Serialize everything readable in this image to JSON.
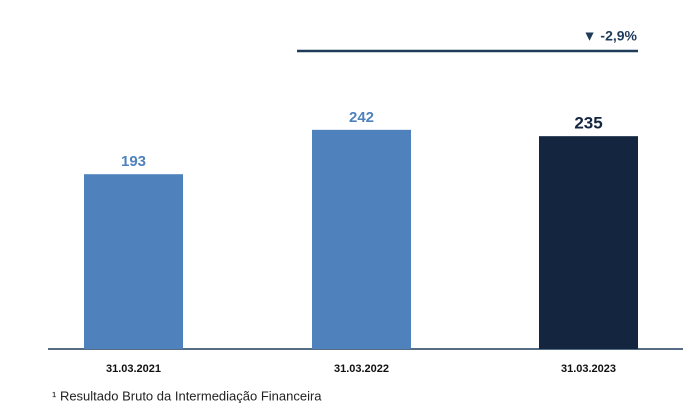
{
  "chart_data": {
    "type": "bar",
    "categories": [
      "31.03.2021",
      "31.03.2022",
      "31.03.2023"
    ],
    "values": [
      193,
      242,
      235
    ],
    "colors": [
      "#4f81bd",
      "#4f81bd",
      "#14263f"
    ],
    "ylim": [
      0,
      265
    ],
    "annotation": "▼ -2,9%",
    "footnote": "¹ Resultado Bruto da Intermediação Financeira"
  }
}
